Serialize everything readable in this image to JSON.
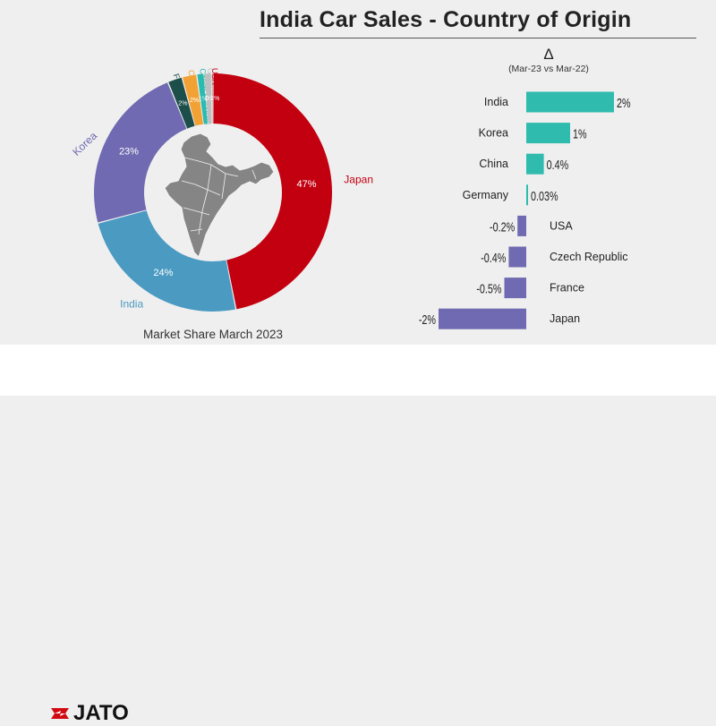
{
  "title": "India Car Sales - Country of Origin",
  "brand": "JATO",
  "colors": {
    "japan": "#c30010",
    "india": "#4a9ac2",
    "korea": "#6f6ab1",
    "france": "#1c4e4a",
    "china": "#f2a234",
    "czech": "#2bbab0",
    "germany": "#bfbfbf",
    "usa": "#c30010",
    "positive_bar": "#2fbcae",
    "negative_bar": "#6f6ab1"
  },
  "chart_data": [
    {
      "type": "pie",
      "variant": "donut",
      "caption": "Market Share March 2023",
      "slices": [
        {
          "label": "Japan",
          "value": 47,
          "value_label": "47%",
          "color": "#c30010"
        },
        {
          "label": "India",
          "value": 24,
          "value_label": "24%",
          "color": "#4a9ac2"
        },
        {
          "label": "Korea",
          "value": 23,
          "value_label": "23%",
          "color": "#6f6ab1"
        },
        {
          "label": "France",
          "value": 2,
          "value_label": "2%",
          "color": "#1c4e4a"
        },
        {
          "label": "China",
          "value": 2,
          "value_label": "2%",
          "color": "#f2a234"
        },
        {
          "label": "Czech Republic",
          "value": 1,
          "value_label": "1%",
          "color": "#2bbab0"
        },
        {
          "label": "Germany",
          "value": 1,
          "value_label": "1%",
          "color": "#bfbfbf"
        },
        {
          "label": "USA",
          "value": 0.2,
          "value_label": "0.2%",
          "color": "#c30010"
        }
      ]
    },
    {
      "type": "bar",
      "orientation": "horizontal",
      "header_symbol": "Δ",
      "subtitle": "(Mar-23 vs Mar-22)",
      "categories": [
        "India",
        "Korea",
        "China",
        "Germany",
        "USA",
        "Czech Republic",
        "France",
        "Japan"
      ],
      "values": [
        2,
        1,
        0.4,
        0.03,
        -0.2,
        -0.4,
        -0.5,
        -2
      ],
      "value_labels": [
        "2%",
        "1%",
        "0.4%",
        "0.03%",
        "-0.2%",
        "-0.4%",
        "-0.5%",
        "-2%"
      ]
    }
  ]
}
